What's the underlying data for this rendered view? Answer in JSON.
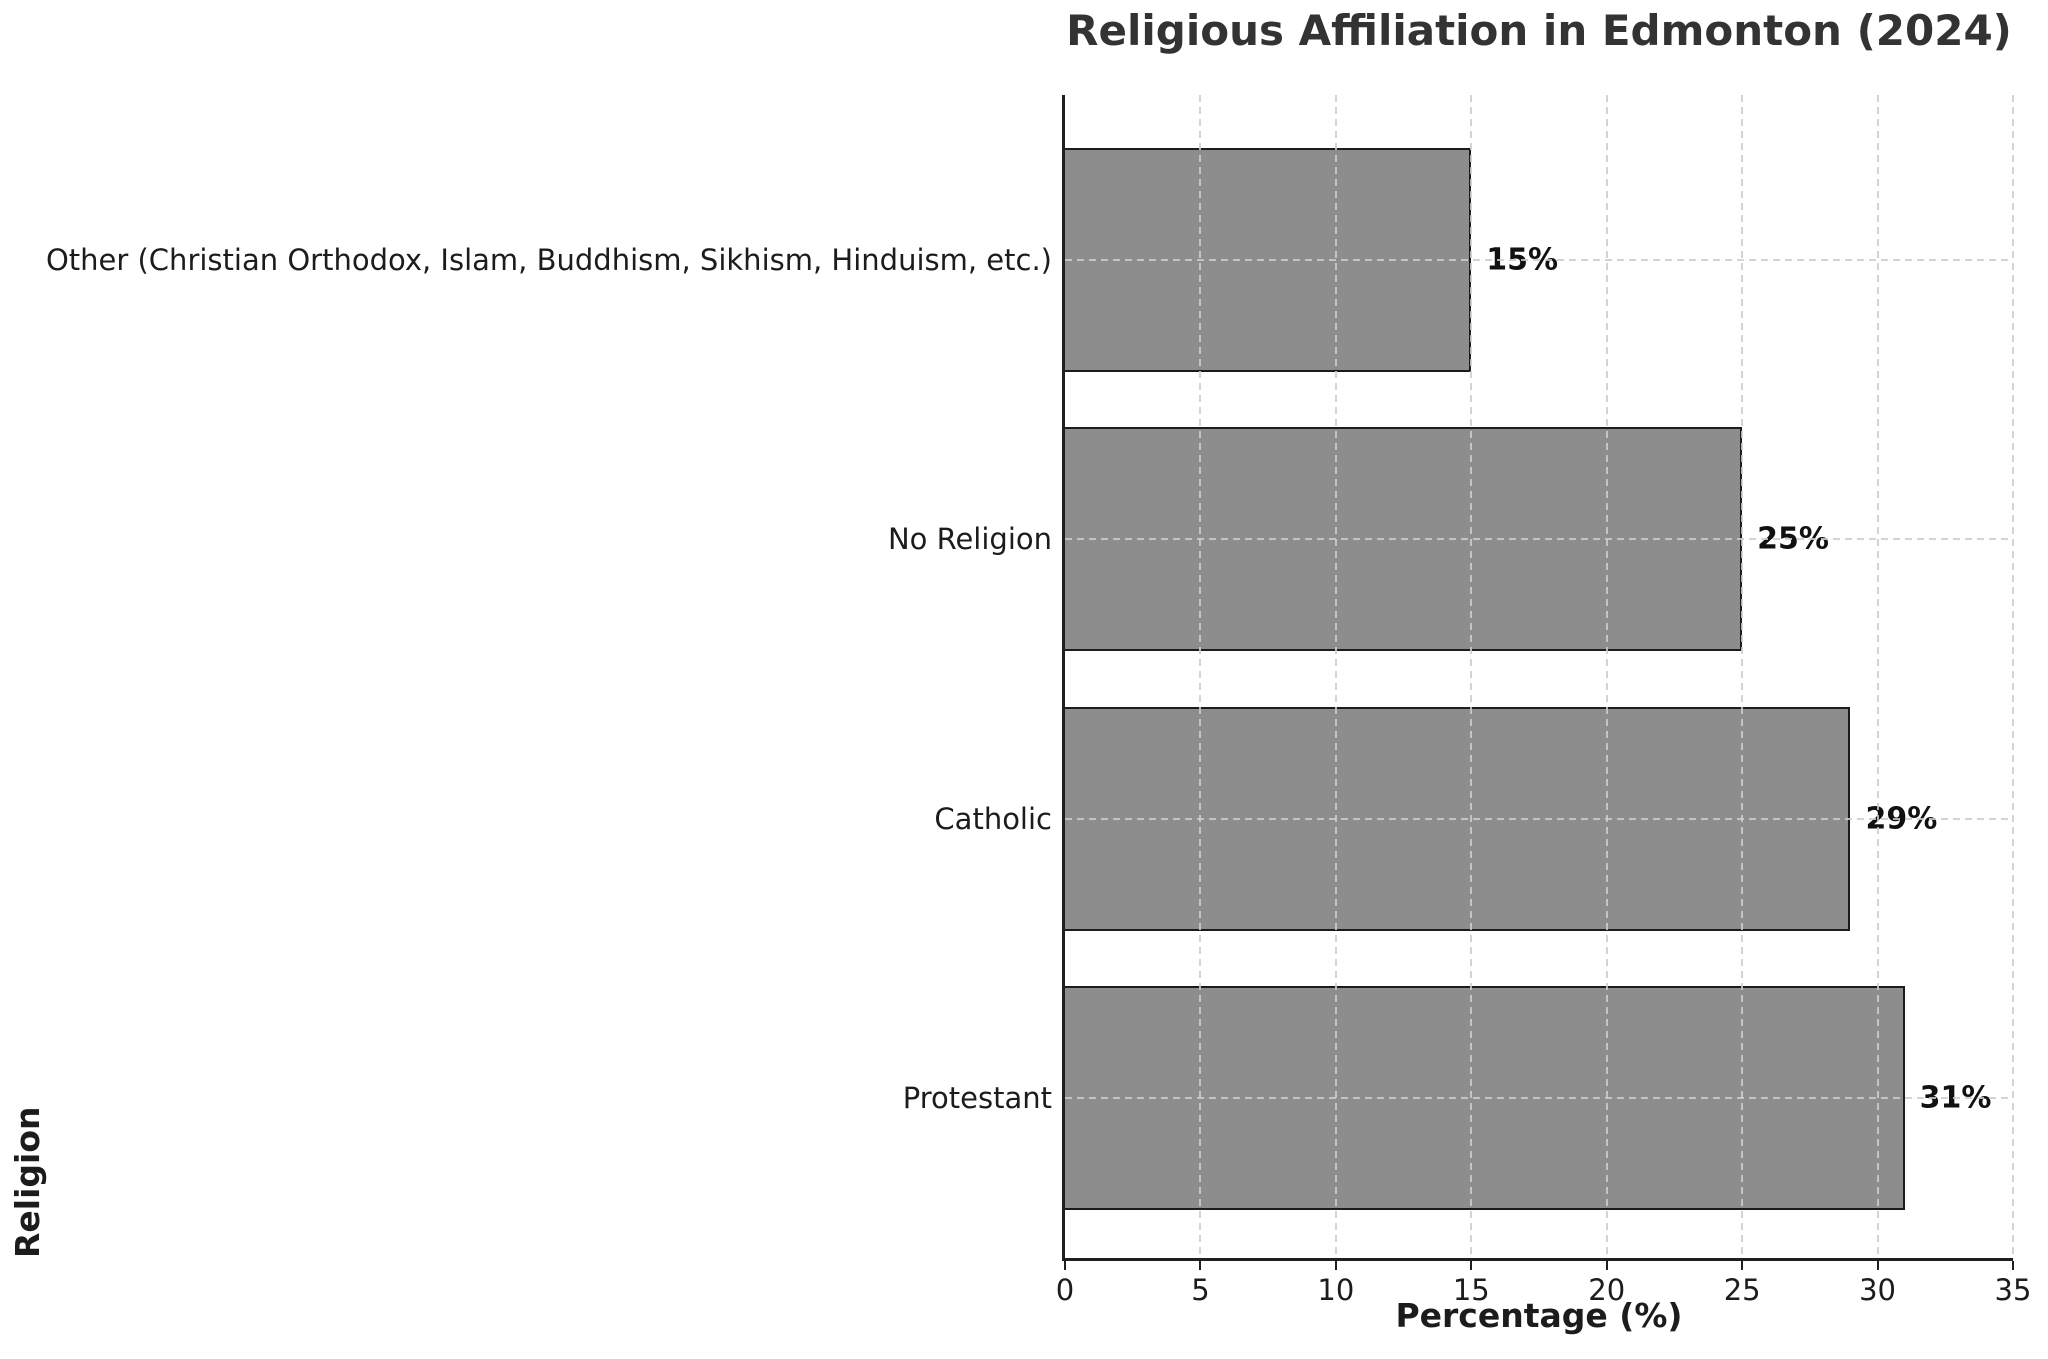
{
  "chart_data": {
    "type": "bar",
    "orientation": "horizontal",
    "title": "Religious Affiliation in Edmonton (2024)",
    "xlabel": "Percentage (%)",
    "ylabel": "Religion",
    "categories": [
      "Other (Christian Orthodox, Islam, Buddhism, Sikhism, Hinduism, etc.)",
      "No Religion",
      "Catholic",
      "Protestant"
    ],
    "values": [
      15,
      25,
      29,
      31
    ],
    "value_labels": [
      "15%",
      "25%",
      "29%",
      "31%"
    ],
    "xlim": [
      0,
      35
    ],
    "xticks": [
      0,
      5,
      10,
      15,
      20,
      25,
      30,
      35
    ],
    "grid": "dashed",
    "legend": "none",
    "colors": {
      "bar_fill": "#8d8d8d",
      "bar_edge": "#1c1c1c",
      "axis": "#1f1f1f",
      "grid": "rgba(205,205,205,0.85)",
      "title": "#333333",
      "text": "#1c1c1c"
    }
  }
}
